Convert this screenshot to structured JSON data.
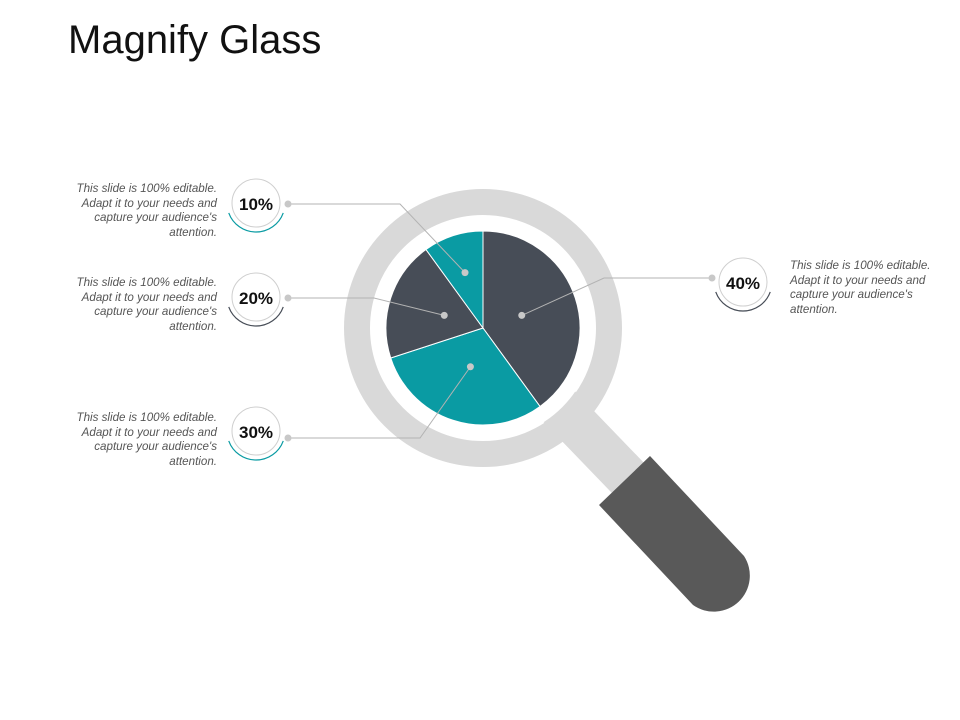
{
  "title": "Magnify Glass",
  "colors": {
    "dark_slice": "#474d57",
    "teal_slice": "#0a9ba3",
    "lens_ring": "#d9d9d9",
    "handle": "#595959",
    "leader_line": "#b3b3b3"
  },
  "chart_data": {
    "type": "pie",
    "title": "",
    "slices": [
      {
        "label": "40%",
        "value": 40,
        "color": "#474d57",
        "description": "This slide is 100% editable. Adapt it to your needs and capture your audience's attention."
      },
      {
        "label": "30%",
        "value": 30,
        "color": "#0a9ba3",
        "description": "This slide is 100% editable. Adapt it to your needs and capture your audience's attention."
      },
      {
        "label": "20%",
        "value": 20,
        "color": "#474d57",
        "description": "This slide is 100% editable. Adapt it to your needs and capture your audience's attention."
      },
      {
        "label": "10%",
        "value": 10,
        "color": "#0a9ba3",
        "description": "This slide is 100% editable. Adapt it to your needs and capture your audience's attention."
      }
    ]
  }
}
